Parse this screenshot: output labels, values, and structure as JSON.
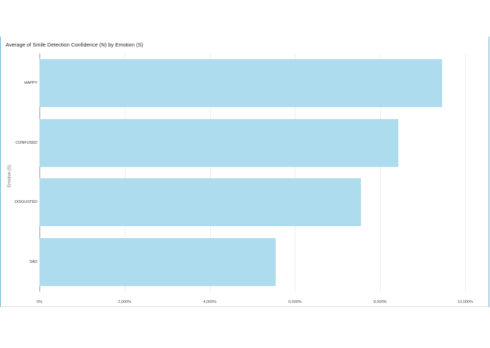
{
  "chart_data": {
    "type": "bar",
    "orientation": "horizontal",
    "title": "Average of Smile Detection Confidence (N) by Emotion (S)",
    "xlabel": "",
    "ylabel": "Emotion (S)",
    "categories": [
      "HAPPY",
      "CONFUSED",
      "DISGUSTED",
      "SAD"
    ],
    "values": [
      9450,
      8430,
      7550,
      5550
    ],
    "value_format": "percent",
    "xlim": [
      0,
      10000
    ],
    "x_ticks": [
      "0%",
      "2,000%",
      "4,000%",
      "6,000%",
      "8,000%",
      "10,000%"
    ],
    "grid": true,
    "legend": null,
    "bar_color": "#acdcee"
  }
}
